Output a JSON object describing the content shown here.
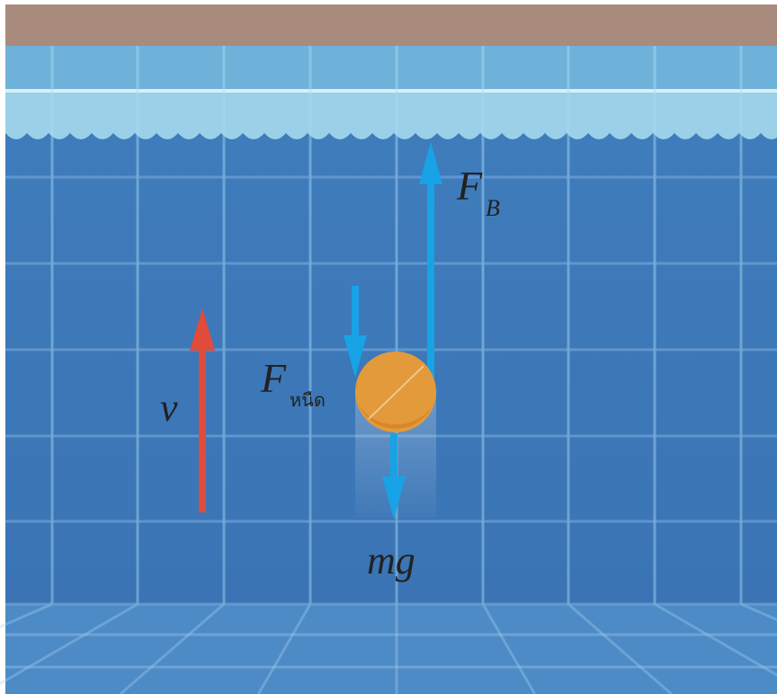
{
  "labels": {
    "buoyant_force": {
      "symbol": "F",
      "subscript": "B"
    },
    "viscous_force": {
      "symbol": "F",
      "subscript": "หนืด"
    },
    "velocity": "v",
    "weight": "mg"
  }
}
